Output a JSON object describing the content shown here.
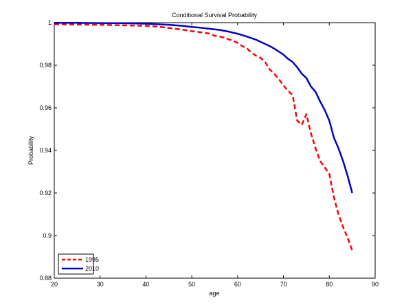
{
  "chart_data": {
    "type": "line",
    "title": "Conditional Survival Probability",
    "xlabel": "age",
    "ylabel": "Probability",
    "xlim": [
      20,
      90
    ],
    "ylim": [
      0.88,
      1.0
    ],
    "xticks": [
      20,
      30,
      40,
      50,
      60,
      70,
      80,
      90
    ],
    "yticks": [
      0.88,
      0.9,
      0.92,
      0.94,
      0.96,
      0.98,
      1.0
    ],
    "ytick_labels": [
      "0.88",
      "0.9",
      "0.92",
      "0.94",
      "0.96",
      "0.98",
      "1"
    ],
    "grid": false,
    "legend_position": "bottom-left",
    "series": [
      {
        "name": "1995",
        "color": "#ff0000",
        "style": "dashed",
        "x": [
          20,
          22,
          24,
          26,
          28,
          30,
          32,
          34,
          36,
          38,
          40,
          42,
          44,
          46,
          48,
          50,
          52,
          54,
          55,
          56,
          57,
          58,
          59,
          60,
          61,
          62,
          63,
          64,
          65,
          66,
          67,
          68,
          69,
          70,
          71,
          72,
          73,
          74,
          75,
          76,
          77,
          78,
          79,
          80,
          81,
          82,
          83,
          84,
          85
        ],
        "y": [
          0.9993,
          0.9992,
          0.9991,
          0.9991,
          0.999,
          0.999,
          0.9989,
          0.9988,
          0.9987,
          0.9986,
          0.9985,
          0.9982,
          0.9978,
          0.9972,
          0.9967,
          0.996,
          0.9955,
          0.9948,
          0.9938,
          0.9935,
          0.993,
          0.9922,
          0.9915,
          0.9905,
          0.989,
          0.988,
          0.986,
          0.9845,
          0.9835,
          0.9815,
          0.978,
          0.976,
          0.9735,
          0.9705,
          0.968,
          0.966,
          0.954,
          0.952,
          0.957,
          0.948,
          0.941,
          0.935,
          0.932,
          0.929,
          0.918,
          0.91,
          0.904,
          0.899,
          0.893
        ]
      },
      {
        "name": "2010",
        "color": "#0000cc",
        "style": "solid",
        "x": [
          20,
          25,
          30,
          35,
          40,
          45,
          48,
          50,
          52,
          54,
          56,
          58,
          60,
          62,
          64,
          66,
          67,
          68,
          70,
          71,
          72,
          73,
          74,
          75,
          76,
          77,
          78,
          79,
          80,
          81,
          82,
          83,
          84,
          85
        ],
        "y": [
          0.9999,
          0.9999,
          0.9998,
          0.9997,
          0.9995,
          0.999,
          0.9985,
          0.998,
          0.9976,
          0.9971,
          0.9966,
          0.9958,
          0.9948,
          0.9935,
          0.992,
          0.99,
          0.989,
          0.9878,
          0.985,
          0.983,
          0.9815,
          0.979,
          0.976,
          0.974,
          0.97,
          0.9675,
          0.963,
          0.959,
          0.954,
          0.946,
          0.941,
          0.935,
          0.928,
          0.92
        ]
      }
    ]
  }
}
